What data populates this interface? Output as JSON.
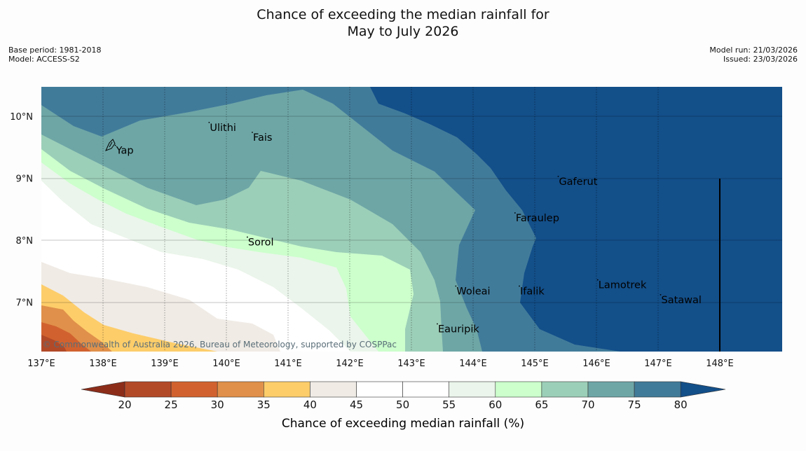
{
  "title": {
    "line1": "Chance of exceeding the median rainfall for",
    "line2": "May to July 2026"
  },
  "meta_left": {
    "base_period": "Base period: 1981-2018",
    "model": "Model: ACCESS-S2"
  },
  "meta_right": {
    "model_run": "Model run: 21/03/2026",
    "issued": "Issued: 23/03/2026"
  },
  "map": {
    "lon_ticks": [
      "137°E",
      "138°E",
      "139°E",
      "140°E",
      "141°E",
      "142°E",
      "143°E",
      "144°E",
      "145°E",
      "146°E",
      "147°E",
      "148°E"
    ],
    "lat_ticks": [
      "10°N",
      "9°N",
      "8°N",
      "7°N"
    ],
    "places": [
      {
        "name": "Ulithi",
        "lon": 139.72,
        "lat": 9.9
      },
      {
        "name": "Fais",
        "lon": 140.42,
        "lat": 9.74
      },
      {
        "name": "Yap",
        "lon": 138.2,
        "lat": 9.53
      },
      {
        "name": "Gaferut",
        "lon": 145.38,
        "lat": 9.03
      },
      {
        "name": "Faraulep",
        "lon": 144.68,
        "lat": 8.44
      },
      {
        "name": "Sorol",
        "lon": 140.34,
        "lat": 8.05
      },
      {
        "name": "Lamotrek",
        "lon": 146.02,
        "lat": 7.36
      },
      {
        "name": "Woleai",
        "lon": 143.72,
        "lat": 7.26
      },
      {
        "name": "Ifalik",
        "lon": 144.75,
        "lat": 7.26
      },
      {
        "name": "Satawal",
        "lon": 147.04,
        "lat": 7.12
      },
      {
        "name": "Eauripik",
        "lon": 143.42,
        "lat": 6.65
      }
    ],
    "copyright": "© Commonwealth of Australia 2026, Bureau of Meteorology, supported by COSPPac"
  },
  "colorbar": {
    "label": "Chance of exceeding median rainfall (%)",
    "ticks": [
      "20",
      "25",
      "30",
      "35",
      "40",
      "45",
      "50",
      "55",
      "60",
      "65",
      "70",
      "75",
      "80"
    ],
    "colors": [
      "#8c2d1a",
      "#b24a28",
      "#d1622f",
      "#e0904a",
      "#fdcd6a",
      "#f0ebe5",
      "#ffffff",
      "#ffffff",
      "#ebf5eb",
      "#ccffcc",
      "#9ccfb8",
      "#6ea6a6",
      "#417b9a",
      "#134f89"
    ]
  }
}
